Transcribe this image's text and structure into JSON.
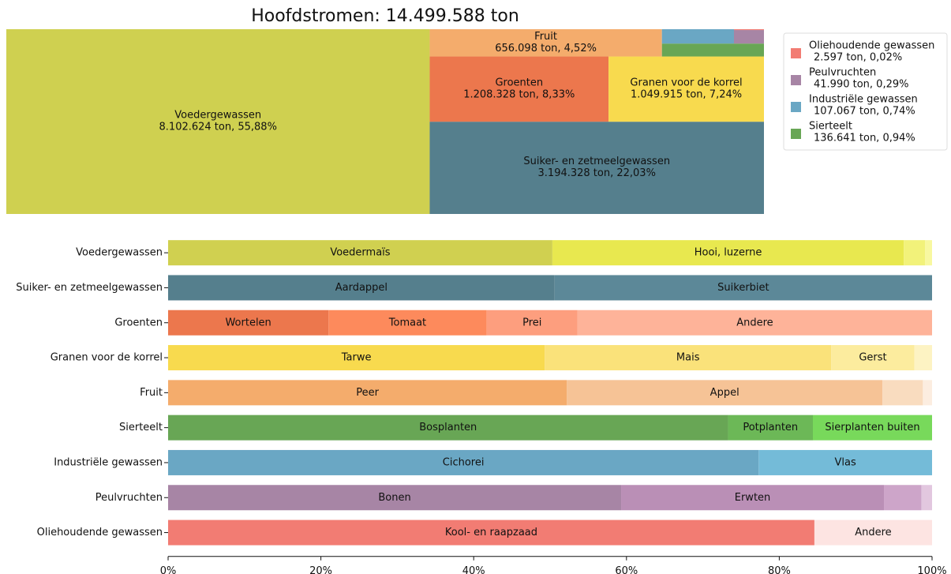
{
  "chart_data": [
    {
      "type": "treemap",
      "title": "Hoofdstromen: 14.499.588 ton",
      "categories": [
        "Voedergewassen",
        "Suiker- en zetmeelgewassen",
        "Groenten",
        "Granen voor de korrel",
        "Fruit",
        "Sierteelt",
        "Industriële gewassen",
        "Peulvruchten",
        "Oliehoudende gewassen"
      ],
      "values": [
        8102624,
        3194328,
        1208328,
        1049915,
        656098,
        136641,
        107067,
        41990,
        2597
      ],
      "value_labels": [
        "8.102.624 ton, 55,88%",
        "3.194.328 ton, 22,03%",
        "1.208.328 ton, 8,33%",
        "1.049.915 ton, 7,24%",
        "656.098 ton, 4,52%",
        "136.641 ton, 0,94%",
        "107.067 ton, 0,74%",
        "41.990 ton, 0,29%",
        "2.597 ton, 0,02%"
      ],
      "colors": [
        "#cfd050",
        "#557f8d",
        "#ec774d",
        "#f8da4e",
        "#f4ac6c",
        "#68a655",
        "#6aa7c4",
        "#a785a5",
        "#f27c73"
      ],
      "legend": "upper right"
    },
    {
      "type": "stacked_barh",
      "xlim": [
        0,
        100
      ],
      "xticks": [
        {
          "value": 0,
          "label": "0%"
        },
        {
          "value": 20,
          "label": "20%"
        },
        {
          "value": 40,
          "label": "40%"
        },
        {
          "value": 60,
          "label": "60%"
        },
        {
          "value": 80,
          "label": "80%"
        },
        {
          "value": 100,
          "label": "100%"
        }
      ],
      "bars": [
        {
          "category": "Voedergewassen",
          "segments": [
            {
              "name": "Voedermaïs",
              "value": 50.3,
              "color": "#d0d050"
            },
            {
              "name": "Hooi, luzerne",
              "value": 46.0,
              "color": "#e8e84f"
            },
            {
              "value": 2.8,
              "color": "#f2f27a"
            },
            {
              "value": 0.9,
              "color": "#f8f8a0"
            }
          ]
        },
        {
          "category": "Suiker- en zetmeelgewassen",
          "segments": [
            {
              "name": "Aardappel",
              "value": 50.6,
              "color": "#557f8d"
            },
            {
              "name": "Suikerbiet",
              "value": 49.4,
              "color": "#5c8898"
            }
          ]
        },
        {
          "category": "Groenten",
          "segments": [
            {
              "name": "Wortelen",
              "value": 21.0,
              "color": "#ec774d"
            },
            {
              "name": "Tomaat",
              "value": 20.7,
              "color": "#fd8a5c"
            },
            {
              "name": "Prei",
              "value": 11.9,
              "color": "#fd9e7e"
            },
            {
              "name": "Andere",
              "value": 46.4,
              "color": "#feb399"
            }
          ]
        },
        {
          "category": "Granen voor de korrel",
          "segments": [
            {
              "name": "Tarwe",
              "value": 49.3,
              "color": "#f8da4e"
            },
            {
              "name": "Mais",
              "value": 37.5,
              "color": "#fae27a"
            },
            {
              "name": "Gerst",
              "value": 10.9,
              "color": "#fcec9e"
            },
            {
              "value": 2.3,
              "color": "#fdf3c3"
            }
          ]
        },
        {
          "category": "Fruit",
          "segments": [
            {
              "name": "Peer",
              "value": 52.2,
              "color": "#f4ac6c"
            },
            {
              "name": "Appel",
              "value": 41.3,
              "color": "#f6c396"
            },
            {
              "value": 5.3,
              "color": "#f9dcbf"
            },
            {
              "value": 1.2,
              "color": "#fcede0"
            }
          ]
        },
        {
          "category": "Sierteelt",
          "segments": [
            {
              "name": "Bosplanten",
              "value": 73.3,
              "color": "#68a655"
            },
            {
              "name": "Potplanten",
              "value": 11.1,
              "color": "#6cb857"
            },
            {
              "name": "Sierplanten buiten",
              "value": 15.6,
              "color": "#78d95b"
            }
          ]
        },
        {
          "category": "Industriële gewassen",
          "segments": [
            {
              "name": "Cichorei",
              "value": 77.3,
              "color": "#6aa7c4"
            },
            {
              "name": "Vlas",
              "value": 22.7,
              "color": "#74bbd8"
            }
          ]
        },
        {
          "category": "Peulvruchten",
          "segments": [
            {
              "name": "Bonen",
              "value": 59.3,
              "color": "#a785a5"
            },
            {
              "name": "Erwten",
              "value": 34.4,
              "color": "#ba8fb6"
            },
            {
              "value": 4.9,
              "color": "#cda5c9"
            },
            {
              "value": 1.4,
              "color": "#e2c7df"
            }
          ]
        },
        {
          "category": "Oliehoudende gewassen",
          "segments": [
            {
              "name": "Kool- en raapzaad",
              "value": 84.6,
              "color": "#f27c73"
            },
            {
              "name": "Andere",
              "value": 15.4,
              "color": "#fde4e2"
            }
          ]
        }
      ]
    }
  ]
}
